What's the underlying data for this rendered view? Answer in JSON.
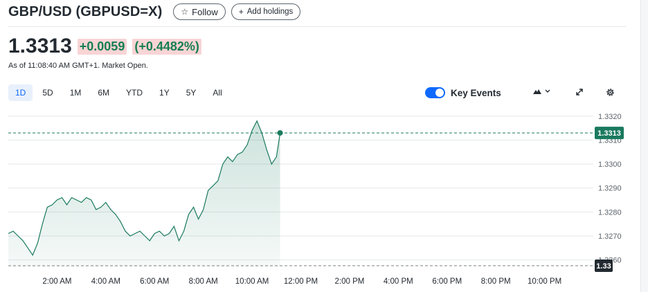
{
  "header": {
    "title": "GBP/USD (GBPUSD=X)",
    "follow_label": "Follow",
    "add_label": "Add holdings"
  },
  "quote": {
    "price": "1.3313",
    "change": "+0.0059",
    "change_pct": "(+0.4482%)",
    "as_of": "As of 11:08:40 AM GMT+1. Market Open."
  },
  "ranges": [
    "1D",
    "5D",
    "1M",
    "6M",
    "YTD",
    "1Y",
    "5Y",
    "All"
  ],
  "active_range": "1D",
  "key_events": {
    "label": "Key Events",
    "enabled": true
  },
  "colors": {
    "up": "#157f52",
    "accent": "#0f69ff",
    "line": "#1a7a5e",
    "change_bg": "#f9d4d5"
  },
  "chart_data": {
    "type": "area",
    "y_ticks": [
      "1.3320",
      "1.3310",
      "1.3300",
      "1.3290",
      "1.3280",
      "1.3270",
      "1.3260"
    ],
    "ylim": [
      1.3257,
      1.3324
    ],
    "x_ticks": [
      "2:00 AM",
      "4:00 AM",
      "6:00 AM",
      "8:00 AM",
      "10:00 AM",
      "12:00 PM",
      "2:00 PM",
      "4:00 PM",
      "6:00 PM",
      "8:00 PM",
      "10:00 PM"
    ],
    "x_tick_hours": [
      2,
      4,
      6,
      8,
      10,
      12,
      14,
      16,
      18,
      20,
      22
    ],
    "xlim_hours": [
      0,
      24
    ],
    "current_value": 1.3313,
    "current_label": "1.3313",
    "previous_close": 1.3254,
    "previous_close_label": "1.33",
    "series": [
      {
        "x": [
          0.0,
          0.2,
          0.4,
          0.6,
          0.8,
          1.0,
          1.2,
          1.4,
          1.6,
          1.8,
          2.0,
          2.2,
          2.4,
          2.6,
          2.8,
          3.0,
          3.2,
          3.4,
          3.6,
          3.8,
          4.0,
          4.2,
          4.4,
          4.6,
          4.8,
          5.0,
          5.2,
          5.4,
          5.6,
          5.8,
          6.0,
          6.2,
          6.4,
          6.6,
          6.8,
          7.0,
          7.2,
          7.4,
          7.6,
          7.8,
          8.0,
          8.2,
          8.4,
          8.6,
          8.8,
          9.0,
          9.2,
          9.4,
          9.6,
          9.8,
          10.0,
          10.2,
          10.4,
          10.6,
          10.8,
          11.0,
          11.15
        ],
        "y": [
          1.3271,
          1.3272,
          1.327,
          1.3268,
          1.3265,
          1.3262,
          1.3267,
          1.3275,
          1.3282,
          1.3283,
          1.3285,
          1.3286,
          1.3283,
          1.3286,
          1.3285,
          1.3284,
          1.3286,
          1.3285,
          1.3281,
          1.3282,
          1.3284,
          1.3281,
          1.3279,
          1.3276,
          1.3272,
          1.327,
          1.3271,
          1.3272,
          1.327,
          1.3268,
          1.3271,
          1.3272,
          1.327,
          1.3271,
          1.3274,
          1.3268,
          1.3272,
          1.3279,
          1.3282,
          1.3277,
          1.3281,
          1.3289,
          1.3291,
          1.3293,
          1.33,
          1.3303,
          1.3301,
          1.3304,
          1.3305,
          1.3308,
          1.3314,
          1.3318,
          1.3313,
          1.3306,
          1.33,
          1.3303,
          1.3313
        ]
      }
    ]
  }
}
